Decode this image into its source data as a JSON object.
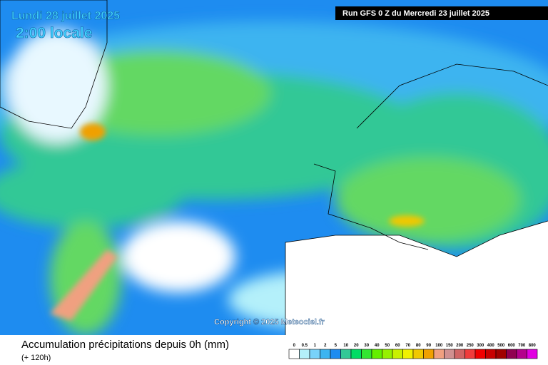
{
  "header": {
    "date": "Lundi 28 juillet 2025",
    "time": "2:00 locale",
    "run": "Run GFS 0 Z du Mercredi 23 juillet 2025"
  },
  "copyright": "Copyright © 2025 Meteociel.fr",
  "footer": {
    "title": "Accumulation précipitations depuis 0h (mm)",
    "subtitle": "(+ 120h)"
  },
  "legend": {
    "levels": [
      0,
      0.5,
      1,
      2,
      5,
      10,
      20,
      30,
      40,
      50,
      60,
      70,
      80,
      90,
      100,
      150,
      200,
      250,
      300,
      400,
      500,
      600,
      700,
      800
    ],
    "colors": [
      "#ffffff",
      "#b4f0fa",
      "#78d2fa",
      "#3cb4f0",
      "#1e8cf0",
      "#32c896",
      "#00dc64",
      "#32e632",
      "#64f000",
      "#96f000",
      "#c8f000",
      "#f0f000",
      "#f0c800",
      "#f0a000",
      "#f0a080",
      "#d09090",
      "#d06464",
      "#f03c3c",
      "#f00000",
      "#c80000",
      "#a00000",
      "#900050",
      "#b4008c",
      "#e100e1"
    ]
  }
}
